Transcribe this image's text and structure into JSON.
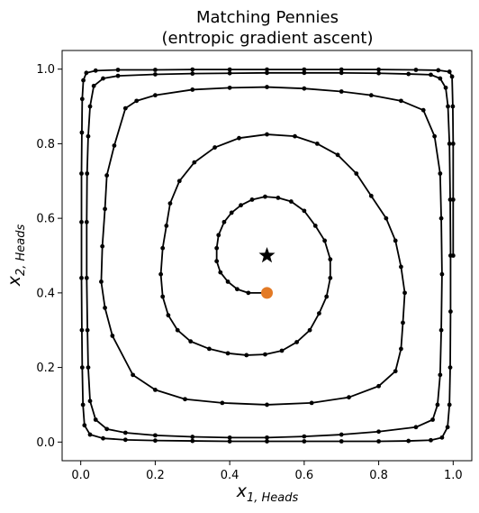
{
  "chart_data": {
    "type": "line",
    "title": "Matching Pennies",
    "subtitle": "(entropic gradient ascent)",
    "xlabel_main": "x",
    "xlabel_sub": "1, Heads",
    "ylabel_main": "x",
    "ylabel_sub": "2, Heads",
    "xlim": [
      -0.05,
      1.05
    ],
    "ylim": [
      -0.05,
      1.05
    ],
    "x_ticks": [
      0.0,
      0.2,
      0.4,
      0.6,
      0.8,
      1.0
    ],
    "x_tick_labels": [
      "0.0",
      "0.2",
      "0.4",
      "0.6",
      "0.8",
      "1.0"
    ],
    "y_ticks": [
      0.0,
      0.2,
      0.4,
      0.6,
      0.8,
      1.0
    ],
    "y_tick_labels": [
      "0.0",
      "0.2",
      "0.4",
      "0.6",
      "0.8",
      "1.0"
    ],
    "grid": false,
    "series": [
      {
        "line_color": "#000000",
        "marker": "circle",
        "points": [
          [
            0.5,
            0.4
          ],
          [
            0.45,
            0.4
          ],
          [
            0.42,
            0.41
          ],
          [
            0.395,
            0.43
          ],
          [
            0.375,
            0.455
          ],
          [
            0.365,
            0.485
          ],
          [
            0.365,
            0.52
          ],
          [
            0.37,
            0.555
          ],
          [
            0.385,
            0.59
          ],
          [
            0.405,
            0.615
          ],
          [
            0.43,
            0.635
          ],
          [
            0.46,
            0.65
          ],
          [
            0.495,
            0.658
          ],
          [
            0.53,
            0.655
          ],
          [
            0.565,
            0.645
          ],
          [
            0.6,
            0.62
          ],
          [
            0.63,
            0.58
          ],
          [
            0.655,
            0.54
          ],
          [
            0.67,
            0.49
          ],
          [
            0.67,
            0.44
          ],
          [
            0.66,
            0.39
          ],
          [
            0.64,
            0.345
          ],
          [
            0.615,
            0.3
          ],
          [
            0.58,
            0.268
          ],
          [
            0.54,
            0.245
          ],
          [
            0.495,
            0.235
          ],
          [
            0.445,
            0.233
          ],
          [
            0.395,
            0.238
          ],
          [
            0.345,
            0.25
          ],
          [
            0.295,
            0.27
          ],
          [
            0.26,
            0.3
          ],
          [
            0.235,
            0.34
          ],
          [
            0.22,
            0.39
          ],
          [
            0.215,
            0.45
          ],
          [
            0.22,
            0.52
          ],
          [
            0.23,
            0.58
          ],
          [
            0.24,
            0.64
          ],
          [
            0.265,
            0.7
          ],
          [
            0.305,
            0.75
          ],
          [
            0.36,
            0.79
          ],
          [
            0.425,
            0.815
          ],
          [
            0.5,
            0.825
          ],
          [
            0.575,
            0.82
          ],
          [
            0.635,
            0.8
          ],
          [
            0.69,
            0.77
          ],
          [
            0.74,
            0.72
          ],
          [
            0.78,
            0.66
          ],
          [
            0.82,
            0.6
          ],
          [
            0.845,
            0.54
          ],
          [
            0.86,
            0.47
          ],
          [
            0.87,
            0.4
          ],
          [
            0.865,
            0.32
          ],
          [
            0.86,
            0.25
          ],
          [
            0.845,
            0.19
          ],
          [
            0.8,
            0.15
          ],
          [
            0.72,
            0.12
          ],
          [
            0.62,
            0.105
          ],
          [
            0.5,
            0.1
          ],
          [
            0.38,
            0.105
          ],
          [
            0.28,
            0.115
          ],
          [
            0.2,
            0.14
          ],
          [
            0.14,
            0.18
          ],
          [
            0.085,
            0.285
          ],
          [
            0.065,
            0.36
          ],
          [
            0.055,
            0.43
          ],
          [
            0.058,
            0.525
          ],
          [
            0.065,
            0.625
          ],
          [
            0.07,
            0.715
          ],
          [
            0.09,
            0.795
          ],
          [
            0.12,
            0.895
          ],
          [
            0.15,
            0.915
          ],
          [
            0.2,
            0.93
          ],
          [
            0.3,
            0.945
          ],
          [
            0.4,
            0.95
          ],
          [
            0.5,
            0.952
          ],
          [
            0.6,
            0.948
          ],
          [
            0.7,
            0.94
          ],
          [
            0.78,
            0.93
          ],
          [
            0.86,
            0.915
          ],
          [
            0.92,
            0.89
          ],
          [
            0.95,
            0.82
          ],
          [
            0.965,
            0.72
          ],
          [
            0.968,
            0.6
          ],
          [
            0.97,
            0.45
          ],
          [
            0.968,
            0.3
          ],
          [
            0.965,
            0.18
          ],
          [
            0.958,
            0.1
          ],
          [
            0.945,
            0.06
          ],
          [
            0.9,
            0.04
          ],
          [
            0.8,
            0.028
          ],
          [
            0.7,
            0.02
          ],
          [
            0.6,
            0.015
          ],
          [
            0.5,
            0.012
          ],
          [
            0.4,
            0.012
          ],
          [
            0.3,
            0.014
          ],
          [
            0.2,
            0.018
          ],
          [
            0.12,
            0.025
          ],
          [
            0.07,
            0.035
          ],
          [
            0.04,
            0.06
          ],
          [
            0.025,
            0.11
          ],
          [
            0.02,
            0.2
          ],
          [
            0.018,
            0.3
          ],
          [
            0.016,
            0.44
          ],
          [
            0.016,
            0.59
          ],
          [
            0.017,
            0.72
          ],
          [
            0.02,
            0.82
          ],
          [
            0.025,
            0.9
          ],
          [
            0.035,
            0.955
          ],
          [
            0.06,
            0.975
          ],
          [
            0.1,
            0.982
          ],
          [
            0.2,
            0.986
          ],
          [
            0.3,
            0.988
          ],
          [
            0.4,
            0.989
          ],
          [
            0.5,
            0.99
          ],
          [
            0.6,
            0.99
          ],
          [
            0.7,
            0.99
          ],
          [
            0.8,
            0.989
          ],
          [
            0.88,
            0.987
          ],
          [
            0.94,
            0.985
          ],
          [
            0.965,
            0.975
          ],
          [
            0.98,
            0.95
          ],
          [
            0.986,
            0.9
          ],
          [
            0.99,
            0.8
          ],
          [
            0.992,
            0.65
          ],
          [
            0.993,
            0.5
          ],
          [
            0.993,
            0.35
          ],
          [
            0.992,
            0.2
          ],
          [
            0.99,
            0.1
          ],
          [
            0.985,
            0.04
          ],
          [
            0.97,
            0.012
          ],
          [
            0.94,
            0.005
          ],
          [
            0.88,
            0.003
          ],
          [
            0.8,
            0.002
          ],
          [
            0.7,
            0.002
          ],
          [
            0.6,
            0.002
          ],
          [
            0.5,
            0.002
          ],
          [
            0.4,
            0.002
          ],
          [
            0.3,
            0.003
          ],
          [
            0.2,
            0.004
          ],
          [
            0.12,
            0.006
          ],
          [
            0.06,
            0.01
          ],
          [
            0.025,
            0.02
          ],
          [
            0.01,
            0.045
          ],
          [
            0.006,
            0.1
          ],
          [
            0.004,
            0.2
          ],
          [
            0.003,
            0.3
          ],
          [
            0.002,
            0.44
          ],
          [
            0.002,
            0.59
          ],
          [
            0.002,
            0.72
          ],
          [
            0.003,
            0.83
          ],
          [
            0.004,
            0.92
          ],
          [
            0.007,
            0.97
          ],
          [
            0.015,
            0.99
          ],
          [
            0.04,
            0.996
          ],
          [
            0.1,
            0.998
          ],
          [
            0.2,
            0.998
          ],
          [
            0.3,
            0.999
          ],
          [
            0.4,
            0.999
          ],
          [
            0.5,
            0.999
          ],
          [
            0.6,
            0.999
          ],
          [
            0.7,
            0.999
          ],
          [
            0.8,
            0.999
          ],
          [
            0.9,
            0.998
          ],
          [
            0.96,
            0.997
          ],
          [
            0.99,
            0.993
          ],
          [
            0.997,
            0.98
          ],
          [
            0.999,
            0.9
          ],
          [
            1.0,
            0.8
          ],
          [
            1.0,
            0.65
          ],
          [
            1.0,
            0.5
          ]
        ]
      }
    ],
    "start_point": {
      "x": 0.5,
      "y": 0.4,
      "color": "#e37a25",
      "marker": "circle"
    },
    "equilibrium_point": {
      "x": 0.5,
      "y": 0.5,
      "color": "#000000",
      "marker": "star"
    }
  }
}
